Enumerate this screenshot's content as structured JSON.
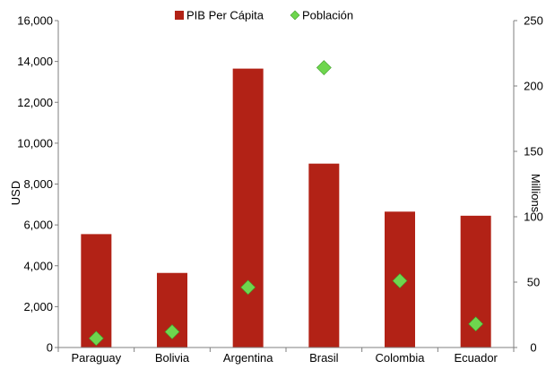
{
  "chart_data": {
    "type": "bar",
    "categories": [
      "Paraguay",
      "Bolivia",
      "Argentina",
      "Brasil",
      "Colombia",
      "Ecuador"
    ],
    "series": [
      {
        "name": "PIB Per Cápita",
        "type": "bar",
        "axis": "left",
        "values": [
          5550,
          3650,
          13650,
          9000,
          6650,
          6450
        ]
      },
      {
        "name": "Población",
        "type": "scatter",
        "axis": "right",
        "marker": "diamond",
        "values": [
          7,
          12,
          46,
          214,
          51,
          18
        ]
      }
    ],
    "ylabel": "USD",
    "y2label": "Millions",
    "ylim": [
      0,
      16000
    ],
    "y2lim": [
      0,
      250
    ],
    "yticks": [
      "0",
      "2,000",
      "4,000",
      "6,000",
      "8,000",
      "10,000",
      "12,000",
      "14,000",
      "16,000"
    ],
    "yticks_values": [
      0,
      2000,
      4000,
      6000,
      8000,
      10000,
      12000,
      14000,
      16000
    ],
    "y2ticks": [
      "0",
      "50",
      "100",
      "150",
      "200",
      "250"
    ],
    "y2ticks_values": [
      0,
      50,
      100,
      150,
      200,
      250
    ],
    "legend": {
      "position": "top",
      "entries": [
        "PIB Per Cápita",
        "Población"
      ]
    },
    "grid": false
  },
  "colors": {
    "bar": "#b22216",
    "marker": "#6ed64e",
    "marker_stroke": "#3f9c2a",
    "axis": "#7f7f7f"
  }
}
